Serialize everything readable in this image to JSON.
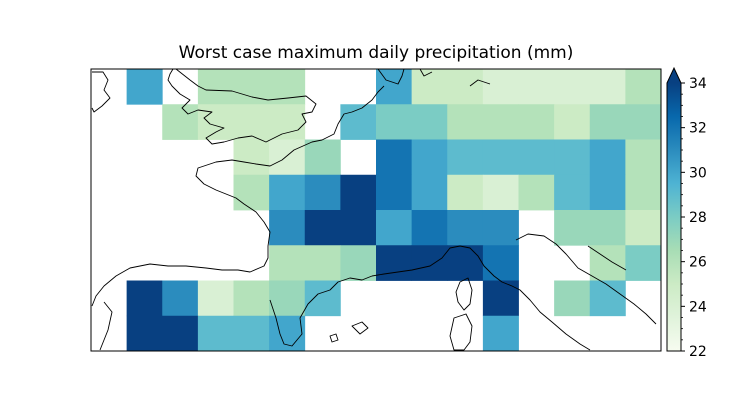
{
  "chart_data": {
    "type": "heatmap",
    "title": "Worst case maximum daily precipitation (mm)",
    "xlabel": "",
    "ylabel": "",
    "colorbar": {
      "min": 22,
      "max": 34,
      "ticks": [
        22,
        24,
        26,
        28,
        30,
        32,
        34
      ],
      "extend": "max",
      "colormap": "GnBu"
    },
    "grid": {
      "n_cols": 16,
      "n_rows": 8,
      "cells": [
        [
          null,
          30,
          null,
          26,
          26,
          26,
          null,
          null,
          30,
          25,
          25,
          24,
          24,
          24,
          24,
          26
        ],
        [
          null,
          null,
          26,
          25,
          25,
          25,
          null,
          29,
          28,
          28,
          26,
          26,
          26,
          25,
          27,
          27
        ],
        [
          null,
          null,
          null,
          null,
          25,
          24,
          27,
          null,
          32,
          30,
          29,
          29,
          29,
          29,
          30,
          26
        ],
        [
          null,
          null,
          null,
          null,
          26,
          30,
          31,
          34,
          32,
          30,
          25,
          24,
          26,
          29,
          30,
          26
        ],
        [
          null,
          null,
          null,
          null,
          null,
          31,
          34,
          34,
          30,
          32,
          31,
          31,
          null,
          27,
          27,
          25
        ],
        [
          null,
          null,
          null,
          null,
          null,
          26,
          26,
          27,
          34,
          34,
          34,
          32,
          null,
          null,
          26,
          28
        ],
        [
          null,
          34,
          31,
          24,
          26,
          27,
          29,
          null,
          null,
          null,
          null,
          34,
          null,
          27,
          29,
          null
        ],
        [
          null,
          34,
          34,
          29,
          29,
          30,
          null,
          null,
          null,
          null,
          null,
          30,
          null,
          null,
          null,
          null
        ]
      ]
    }
  }
}
